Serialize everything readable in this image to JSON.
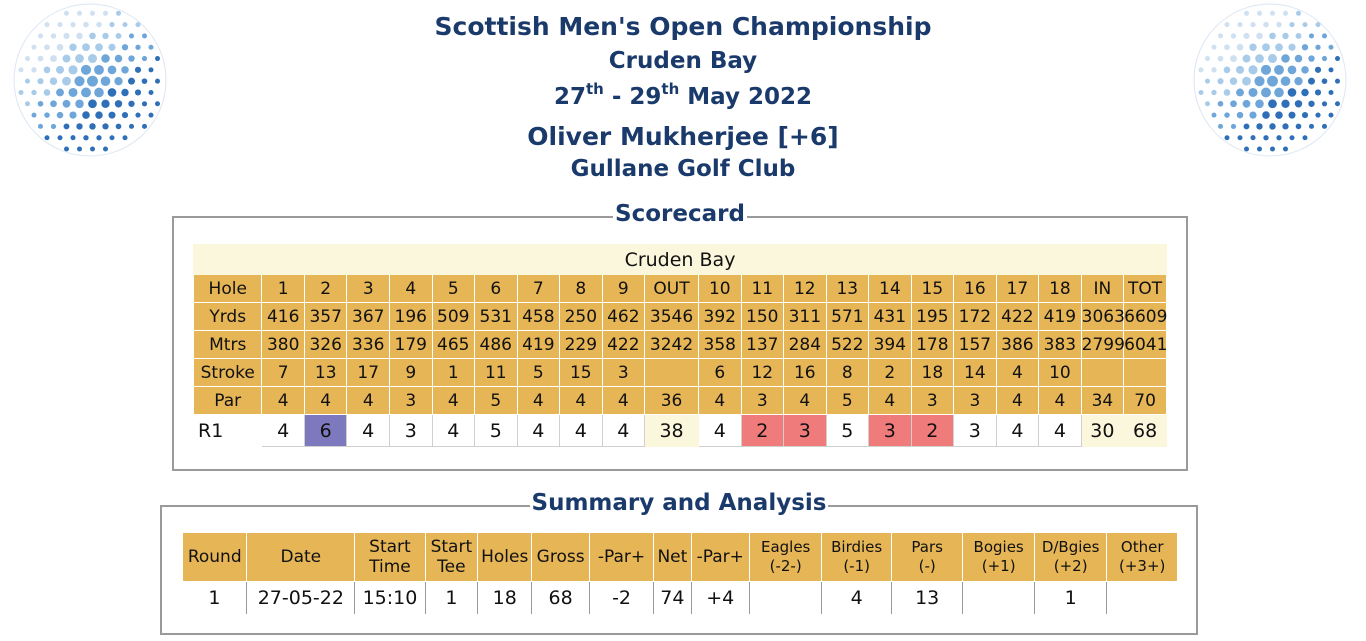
{
  "header": {
    "title": "Scottish Men's Open Championship",
    "venue": "Cruden Bay",
    "date_start_day": "27",
    "date_start_suffix": "th",
    "date_sep": " - ",
    "date_end_day": "29",
    "date_end_suffix": "th",
    "date_month_year": " May 2022",
    "player": "Oliver Mukherjee [+6]",
    "club": "Gullane Golf Club"
  },
  "colors": {
    "header_text": "#1a3a6b",
    "table_gold": "#e5b556",
    "cream": "#fbf7dc",
    "double_bogey": "#7c79bf",
    "birdie": "#ef7b7b"
  },
  "scorecard": {
    "legend": "Scorecard",
    "course": "Cruden Bay",
    "rows": [
      [
        "Hole",
        "1",
        "2",
        "3",
        "4",
        "5",
        "6",
        "7",
        "8",
        "9",
        "OUT",
        "10",
        "11",
        "12",
        "13",
        "14",
        "15",
        "16",
        "17",
        "18",
        "IN",
        "TOT"
      ],
      [
        "Yrds",
        "416",
        "357",
        "367",
        "196",
        "509",
        "531",
        "458",
        "250",
        "462",
        "3546",
        "392",
        "150",
        "311",
        "571",
        "431",
        "195",
        "172",
        "422",
        "419",
        "3063",
        "6609"
      ],
      [
        "Mtrs",
        "380",
        "326",
        "336",
        "179",
        "465",
        "486",
        "419",
        "229",
        "422",
        "3242",
        "358",
        "137",
        "284",
        "522",
        "394",
        "178",
        "157",
        "386",
        "383",
        "2799",
        "6041"
      ],
      [
        "Stroke",
        "7",
        "13",
        "17",
        "9",
        "1",
        "11",
        "5",
        "15",
        "3",
        "",
        "6",
        "12",
        "16",
        "8",
        "2",
        "18",
        "14",
        "4",
        "10",
        "",
        ""
      ],
      [
        "Par",
        "4",
        "4",
        "4",
        "3",
        "4",
        "5",
        "4",
        "4",
        "4",
        "36",
        "4",
        "3",
        "4",
        "5",
        "4",
        "3",
        "3",
        "4",
        "4",
        "34",
        "70"
      ]
    ],
    "round": [
      "R1",
      "4",
      "6",
      "4",
      "3",
      "4",
      "5",
      "4",
      "4",
      "4",
      "38",
      "4",
      "2",
      "3",
      "5",
      "3",
      "2",
      "3",
      "4",
      "4",
      "30",
      "68"
    ]
  },
  "summary": {
    "legend": "Summary and Analysis",
    "headers": [
      [
        "Round"
      ],
      [
        "Date"
      ],
      [
        "Start",
        "Time"
      ],
      [
        "Start",
        "Tee"
      ],
      [
        "Holes"
      ],
      [
        "Gross"
      ],
      [
        "-Par+"
      ],
      [
        "Net"
      ],
      [
        "-Par+"
      ],
      [
        "Eagles",
        "(-2-)"
      ],
      [
        "Birdies",
        "(-1)"
      ],
      [
        "Pars",
        "(-)"
      ],
      [
        "Bogies",
        "(+1)"
      ],
      [
        "D/Bgies",
        "(+2)"
      ],
      [
        "Other",
        "(+3+)"
      ]
    ],
    "row": [
      "1",
      "27-05-22",
      "15:10",
      "1",
      "18",
      "68",
      "-2",
      "74",
      "+4",
      "",
      "4",
      "13",
      "",
      "1",
      ""
    ]
  }
}
